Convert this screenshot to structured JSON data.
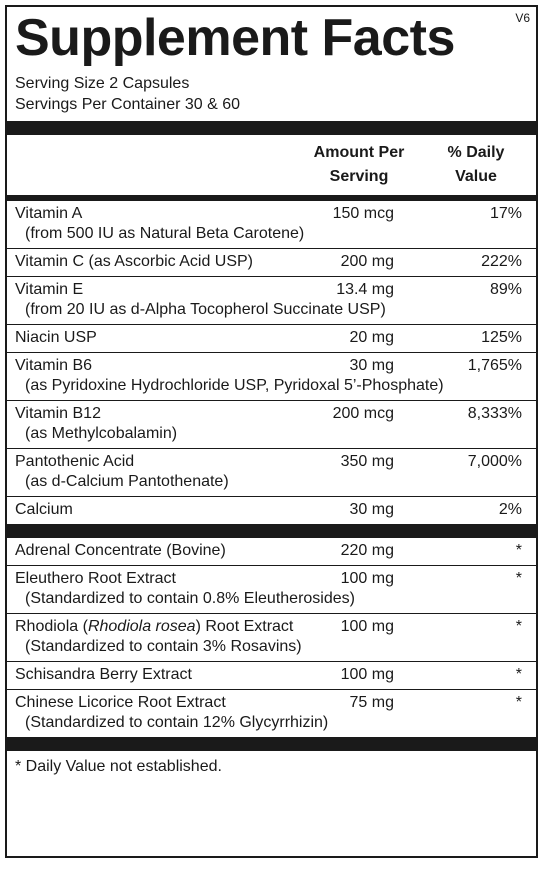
{
  "version": "V6",
  "title": "Supplement Facts",
  "serving_size": "Serving Size 2 Capsules",
  "servings_per_container": "Servings Per Container 30 & 60",
  "headers": {
    "amount_line1": "Amount Per",
    "amount_line2": "Serving",
    "dv_line1": "% Daily",
    "dv_line2": "Value"
  },
  "vitamins": [
    {
      "name": "Vitamin A",
      "sub": "(from 500 IU as Natural Beta Carotene)",
      "amount": "150 mcg",
      "dv": "17%"
    },
    {
      "name": "Vitamin C (as Ascorbic Acid USP)",
      "sub": "",
      "amount": "200 mg",
      "dv": "222%"
    },
    {
      "name": "Vitamin E",
      "sub": "(from 20 IU as d-Alpha Tocopherol Succinate USP)",
      "amount": "13.4 mg",
      "dv": "89%"
    },
    {
      "name": "Niacin USP",
      "sub": "",
      "amount": "20 mg",
      "dv": "125%"
    },
    {
      "name": "Vitamin B6",
      "sub": "(as Pyridoxine Hydrochloride USP, Pyridoxal 5’-Phosphate)",
      "amount": "30 mg",
      "dv": "1,765%"
    },
    {
      "name": "Vitamin B12",
      "sub": "(as Methylcobalamin)",
      "amount": "200 mcg",
      "dv": "8,333%"
    },
    {
      "name": "Pantothenic Acid",
      "sub": "(as d-Calcium Pantothenate)",
      "amount": "350 mg",
      "dv": "7,000%"
    },
    {
      "name": "Calcium",
      "sub": "",
      "amount": "30 mg",
      "dv": "2%"
    }
  ],
  "other": [
    {
      "name": "Adrenal Concentrate  (Bovine)",
      "sub": "",
      "amount": "220 mg",
      "dv": "*"
    },
    {
      "name": "Eleuthero Root Extract",
      "sub": "(Standardized to contain 0.8% Eleutherosides)",
      "amount": "100 mg",
      "dv": "*"
    },
    {
      "name": "Rhodiola (",
      "name_italic": "Rhodiola rosea",
      "name_after": ") Root Extract",
      "sub": "(Standardized to contain 3% Rosavins)",
      "amount": "100 mg",
      "dv": "*"
    },
    {
      "name": "Schisandra Berry Extract",
      "sub": "",
      "amount": "100 mg",
      "dv": "*"
    },
    {
      "name": "Chinese Licorice Root Extract",
      "sub": "(Standardized to contain 12% Glycyrrhizin)",
      "amount": "75 mg",
      "dv": "*"
    }
  ],
  "footnote": "* Daily Value not established."
}
